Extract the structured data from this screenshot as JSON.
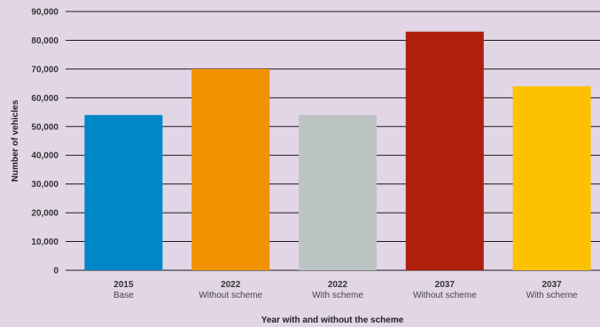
{
  "chart_data": {
    "type": "bar",
    "title": "",
    "xlabel": "Year with and without the scheme",
    "ylabel": "Number of vehicles",
    "ylim": [
      0,
      90000
    ],
    "yticks": [
      0,
      10000,
      20000,
      30000,
      40000,
      50000,
      60000,
      70000,
      80000,
      90000
    ],
    "ytick_labels": [
      "0",
      "10,000",
      "20,000",
      "30,000",
      "40,000",
      "50,000",
      "60,000",
      "70,000",
      "80,000",
      "90,000"
    ],
    "grid": true,
    "categories": [
      {
        "line1": "2015",
        "line2": "Base"
      },
      {
        "line1": "2022",
        "line2": "Without scheme"
      },
      {
        "line1": "2022",
        "line2": "With scheme"
      },
      {
        "line1": "2037",
        "line2": "Without scheme"
      },
      {
        "line1": "2037",
        "line2": "With scheme"
      }
    ],
    "values": [
      54000,
      70000,
      54000,
      83000,
      64000
    ],
    "colors": [
      "#0087c8",
      "#f39200",
      "#bcc5c3",
      "#af1f0c",
      "#fcc200"
    ]
  }
}
